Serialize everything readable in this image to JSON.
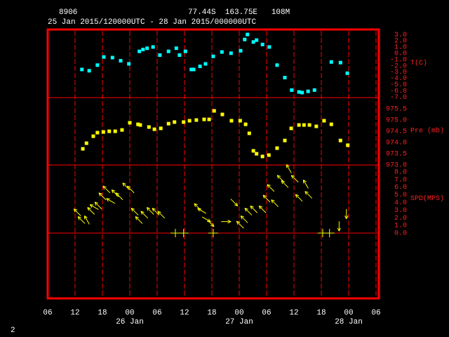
{
  "chart_data": {
    "type": "meteogram",
    "station": "8906",
    "location": "77.44S  163.75E   108M",
    "period": "25 Jan 2015/120000UTC - 28 Jan 2015/000000UTC",
    "footer": "2",
    "xlim": [
      0,
      72
    ],
    "xticks": [
      {
        "value": 0,
        "label": "06"
      },
      {
        "value": 6,
        "label": "12"
      },
      {
        "value": 12,
        "label": "18"
      },
      {
        "value": 18,
        "label": "00"
      },
      {
        "value": 24,
        "label": "06"
      },
      {
        "value": 30,
        "label": "12"
      },
      {
        "value": 36,
        "label": "18"
      },
      {
        "value": 42,
        "label": "00"
      },
      {
        "value": 48,
        "label": "06"
      },
      {
        "value": 54,
        "label": "12"
      },
      {
        "value": 60,
        "label": "18"
      },
      {
        "value": 66,
        "label": "00"
      },
      {
        "value": 72,
        "label": "06"
      }
    ],
    "xdates": [
      {
        "value": 18,
        "label": "26 Jan"
      },
      {
        "value": 42,
        "label": "27 Jan"
      },
      {
        "value": 66,
        "label": "28 Jan"
      }
    ],
    "panels": [
      {
        "type": "scatter",
        "name": "T(C)",
        "color": "#00ffff",
        "x": [
          7.5,
          9.1,
          10.9,
          12.3,
          14.2,
          16.0,
          17.8,
          20.1,
          20.9,
          21.8,
          23.1,
          24.6,
          26.5,
          28.2,
          28.9,
          30.2,
          31.5,
          32.0,
          33.4,
          34.6,
          36.3,
          38.2,
          40.2,
          42.3,
          43.2,
          43.8,
          45.1,
          45.8,
          47.1,
          48.6,
          50.3,
          52.0,
          53.5,
          55.1,
          55.8,
          57.1,
          58.5,
          62.2,
          64.2,
          65.7
        ],
        "values": [
          -2.6,
          -2.8,
          -1.9,
          -0.6,
          -0.7,
          -1.2,
          -1.7,
          0.3,
          0.6,
          0.8,
          1.0,
          -0.3,
          0.3,
          0.8,
          -0.3,
          0.3,
          -2.6,
          -2.6,
          -2.1,
          -1.7,
          -0.5,
          0.2,
          0.0,
          0.4,
          2.2,
          3.0,
          1.8,
          2.1,
          1.4,
          1.0,
          -1.9,
          -3.9,
          -5.9,
          -6.2,
          -6.3,
          -6.1,
          -5.9,
          -1.4,
          -1.5,
          -3.2
        ],
        "ylim": [
          -7.1,
          3.8
        ],
        "yticks": [
          {
            "value": 3,
            "label": "3.0"
          },
          {
            "value": 2,
            "label": "2.0"
          },
          {
            "value": 1,
            "label": "1.0"
          },
          {
            "value": 0,
            "label": "0.0"
          },
          {
            "value": -1,
            "label": "-1.0"
          },
          {
            "value": -2,
            "label": "-2.0"
          },
          {
            "value": -3,
            "label": "-3.0"
          },
          {
            "value": -4,
            "label": "-4.0"
          },
          {
            "value": -5,
            "label": "-5.0"
          },
          {
            "value": -6,
            "label": "-6.0"
          },
          {
            "value": -7,
            "label": "-7.0"
          }
        ]
      },
      {
        "type": "scatter",
        "name": "Pre (mb)",
        "color": "#ffff00",
        "x": [
          7.7,
          8.5,
          10.0,
          10.9,
          12.2,
          13.5,
          14.8,
          16.3,
          18.0,
          19.8,
          20.3,
          22.2,
          23.4,
          24.8,
          26.5,
          27.8,
          29.8,
          31.1,
          32.6,
          34.3,
          35.4,
          36.5,
          38.3,
          40.3,
          42.2,
          43.4,
          44.2,
          45.1,
          45.8,
          47.1,
          48.5,
          50.3,
          52.0,
          53.4,
          55.1,
          56.2,
          57.4,
          58.9,
          60.6,
          62.2,
          64.2,
          65.8
        ],
        "values": [
          973.72,
          973.97,
          974.28,
          974.44,
          974.47,
          974.5,
          974.5,
          974.56,
          974.88,
          974.81,
          974.78,
          974.69,
          974.59,
          974.63,
          974.84,
          974.91,
          974.91,
          974.97,
          975.0,
          975.03,
          975.03,
          975.41,
          975.25,
          974.97,
          974.97,
          974.81,
          974.41,
          973.63,
          973.5,
          973.38,
          973.44,
          973.75,
          974.09,
          974.63,
          974.78,
          974.78,
          974.78,
          974.72,
          974.97,
          974.81,
          974.09,
          973.88
        ],
        "ylim": [
          973,
          976
        ],
        "yticks": [
          975.5,
          {
            "value": 975,
            "label": "975.0"
          },
          974.5,
          {
            "value": 974,
            "label": "974.0"
          },
          973.5,
          {
            "value": 973,
            "label": "973.0"
          }
        ]
      },
      {
        "type": "wind",
        "name": "SPD(MPS)",
        "color": "#ffff00",
        "x": [
          6.5,
          7.4,
          8.6,
          9.5,
          10.2,
          11.1,
          12.0,
          12.9,
          13.8,
          14.8,
          15.7,
          17.2,
          18.2,
          19.1,
          20.0,
          21.2,
          22.5,
          23.7,
          24.9,
          28.0,
          29.8,
          32.9,
          33.8,
          34.8,
          35.7,
          36.3,
          39.1,
          40.9,
          42.2,
          43.1,
          44.0,
          45.2,
          47.1,
          48.0,
          48.9,
          49.8,
          51.1,
          52.0,
          52.9,
          54.2,
          55.1,
          56.6,
          57.2,
          60.3,
          61.8,
          63.9,
          65.5
        ],
        "values": [
          2.7,
          1.7,
          1.7,
          2.9,
          3.4,
          3.6,
          4.8,
          5.7,
          4.2,
          5.2,
          4.8,
          6.1,
          5.7,
          2.8,
          1.7,
          2.4,
          2.9,
          2.8,
          2.4,
          0,
          0,
          3.4,
          2.9,
          1.8,
          1.3,
          0,
          1.5,
          4.0,
          1.1,
          1.8,
          2.8,
          3.1,
          3.1,
          4.5,
          5.9,
          3.9,
          7.1,
          6.4,
          8.4,
          7.1,
          4.6,
          6.4,
          5.0,
          0,
          0,
          0.9,
          2.5
        ],
        "directions": [
          135,
          135,
          150,
          135,
          120,
          135,
          135,
          135,
          120,
          135,
          135,
          135,
          135,
          135,
          135,
          135,
          135,
          135,
          135,
          0,
          0,
          135,
          120,
          300,
          315,
          0,
          270,
          315,
          135,
          135,
          135,
          135,
          135,
          135,
          135,
          135,
          135,
          135,
          150,
          135,
          135,
          150,
          135,
          0,
          0,
          0,
          0
        ],
        "ylim": [
          0,
          8.9
        ],
        "yticks": [
          {
            "value": 8,
            "label": "8.0"
          },
          {
            "value": 7,
            "label": "7.0"
          },
          {
            "value": 6,
            "label": "6.0"
          },
          {
            "value": 5,
            "label": "5.0"
          },
          {
            "value": 4,
            "label": "4.0"
          },
          {
            "value": 3,
            "label": "3.0"
          },
          {
            "value": 2,
            "label": "2.0"
          },
          {
            "value": 1,
            "label": "1.0"
          },
          {
            "value": 0,
            "label": "0.0"
          }
        ]
      }
    ]
  }
}
